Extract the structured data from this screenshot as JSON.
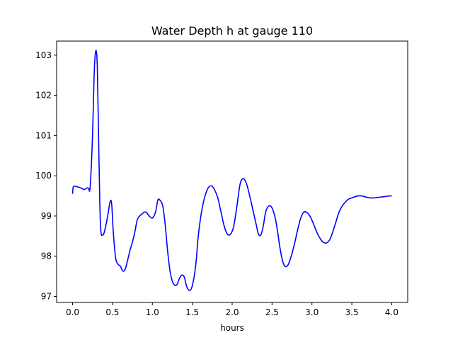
{
  "chart_data": {
    "type": "line",
    "title": "Water Depth h at gauge 110",
    "xlabel": "hours",
    "ylabel": "",
    "xlim": [
      -0.2,
      4.2
    ],
    "ylim": [
      96.85,
      103.35
    ],
    "xticks": [
      {
        "value": 0.0,
        "label": "0.0"
      },
      {
        "value": 0.5,
        "label": "0.5"
      },
      {
        "value": 1.0,
        "label": "1.0"
      },
      {
        "value": 1.5,
        "label": "1.5"
      },
      {
        "value": 2.0,
        "label": "2.0"
      },
      {
        "value": 2.5,
        "label": "2.5"
      },
      {
        "value": 3.0,
        "label": "3.0"
      },
      {
        "value": 3.5,
        "label": "3.5"
      },
      {
        "value": 4.0,
        "label": "4.0"
      }
    ],
    "yticks": [
      {
        "value": 97,
        "label": "97"
      },
      {
        "value": 98,
        "label": "98"
      },
      {
        "value": 99,
        "label": "99"
      },
      {
        "value": 100,
        "label": "100"
      },
      {
        "value": 101,
        "label": "101"
      },
      {
        "value": 102,
        "label": "102"
      },
      {
        "value": 103,
        "label": "103"
      }
    ],
    "grid": false,
    "series": [
      {
        "color": "#0000ff",
        "x": [
          0.0,
          0.01,
          0.05,
          0.1,
          0.15,
          0.18,
          0.2,
          0.22,
          0.25,
          0.27,
          0.29,
          0.31,
          0.33,
          0.35,
          0.38,
          0.41,
          0.44,
          0.47,
          0.49,
          0.51,
          0.54,
          0.57,
          0.6,
          0.63,
          0.66,
          0.69,
          0.72,
          0.75,
          0.78,
          0.81,
          0.84,
          0.87,
          0.9,
          0.93,
          0.96,
          1.0,
          1.04,
          1.07,
          1.1,
          1.13,
          1.16,
          1.19,
          1.22,
          1.25,
          1.28,
          1.31,
          1.34,
          1.37,
          1.4,
          1.43,
          1.46,
          1.49,
          1.52,
          1.55,
          1.57,
          1.6,
          1.63,
          1.66,
          1.7,
          1.74,
          1.78,
          1.82,
          1.86,
          1.9,
          1.94,
          1.98,
          2.02,
          2.06,
          2.1,
          2.14,
          2.18,
          2.22,
          2.26,
          2.3,
          2.33,
          2.36,
          2.39,
          2.42,
          2.46,
          2.5,
          2.54,
          2.57,
          2.6,
          2.63,
          2.66,
          2.7,
          2.74,
          2.78,
          2.82,
          2.86,
          2.9,
          2.94,
          2.98,
          3.02,
          3.06,
          3.1,
          3.14,
          3.18,
          3.22,
          3.26,
          3.3,
          3.34,
          3.38,
          3.42,
          3.46,
          3.5,
          3.54,
          3.58,
          3.62,
          3.66,
          3.7,
          3.74,
          3.78,
          3.82,
          3.86,
          3.9,
          3.94,
          3.97,
          4.0
        ],
        "y": [
          99.55,
          99.73,
          99.73,
          99.7,
          99.66,
          99.7,
          99.69,
          99.72,
          101.0,
          102.5,
          103.1,
          102.7,
          100.5,
          98.75,
          98.53,
          98.7,
          99.0,
          99.35,
          99.3,
          98.6,
          97.95,
          97.8,
          97.75,
          97.63,
          97.68,
          97.9,
          98.15,
          98.35,
          98.6,
          98.9,
          99.0,
          99.05,
          99.1,
          99.08,
          99.0,
          98.95,
          99.1,
          99.4,
          99.38,
          99.25,
          98.8,
          98.15,
          97.65,
          97.38,
          97.28,
          97.3,
          97.45,
          97.53,
          97.48,
          97.25,
          97.15,
          97.2,
          97.45,
          97.9,
          98.4,
          98.9,
          99.25,
          99.5,
          99.7,
          99.75,
          99.65,
          99.45,
          99.1,
          98.75,
          98.55,
          98.55,
          98.75,
          99.25,
          99.8,
          99.93,
          99.8,
          99.5,
          99.15,
          98.8,
          98.55,
          98.53,
          98.75,
          99.1,
          99.25,
          99.2,
          98.95,
          98.6,
          98.2,
          97.9,
          97.75,
          97.78,
          98.0,
          98.3,
          98.65,
          98.95,
          99.1,
          99.08,
          98.98,
          98.8,
          98.6,
          98.45,
          98.35,
          98.33,
          98.4,
          98.6,
          98.85,
          99.1,
          99.25,
          99.35,
          99.42,
          99.45,
          99.48,
          99.5,
          99.5,
          99.48,
          99.46,
          99.45,
          99.45,
          99.46,
          99.47,
          99.48,
          99.49,
          99.5,
          99.5
        ]
      }
    ]
  }
}
